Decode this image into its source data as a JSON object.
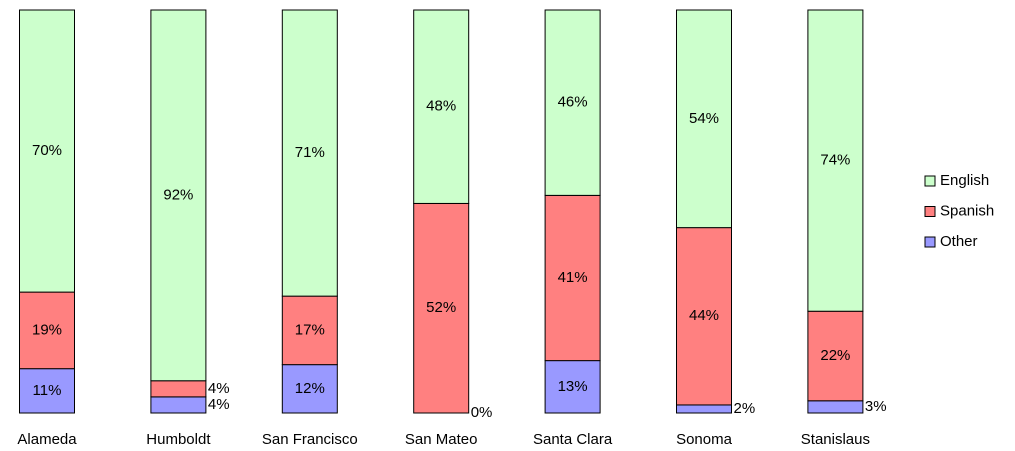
{
  "chart_data": {
    "type": "stacked-bar",
    "categories": [
      "Alameda",
      "Humboldt",
      "San Francisco",
      "San Mateo",
      "Santa Clara",
      "Sonoma",
      "Stanislaus"
    ],
    "series": [
      {
        "name": "English",
        "color": "#ccffcc",
        "values": [
          70,
          92,
          71,
          48,
          46,
          54,
          74
        ],
        "value_labels": [
          "70%",
          "92%",
          "71%",
          "48%",
          "46%",
          "54%",
          "74%"
        ]
      },
      {
        "name": "Spanish",
        "color": "#ff8080",
        "values": [
          19,
          4,
          17,
          52,
          41,
          44,
          22
        ],
        "value_labels": [
          "19%",
          "4%",
          "17%",
          "52%",
          "41%",
          "44%",
          "22%"
        ]
      },
      {
        "name": "Other",
        "color": "#9999ff",
        "values": [
          11,
          4,
          12,
          0,
          13,
          2,
          3
        ],
        "value_labels": [
          "11%",
          "4%",
          "12%",
          "0%",
          "13%",
          "2%",
          "3%"
        ]
      }
    ],
    "legend": "right"
  }
}
